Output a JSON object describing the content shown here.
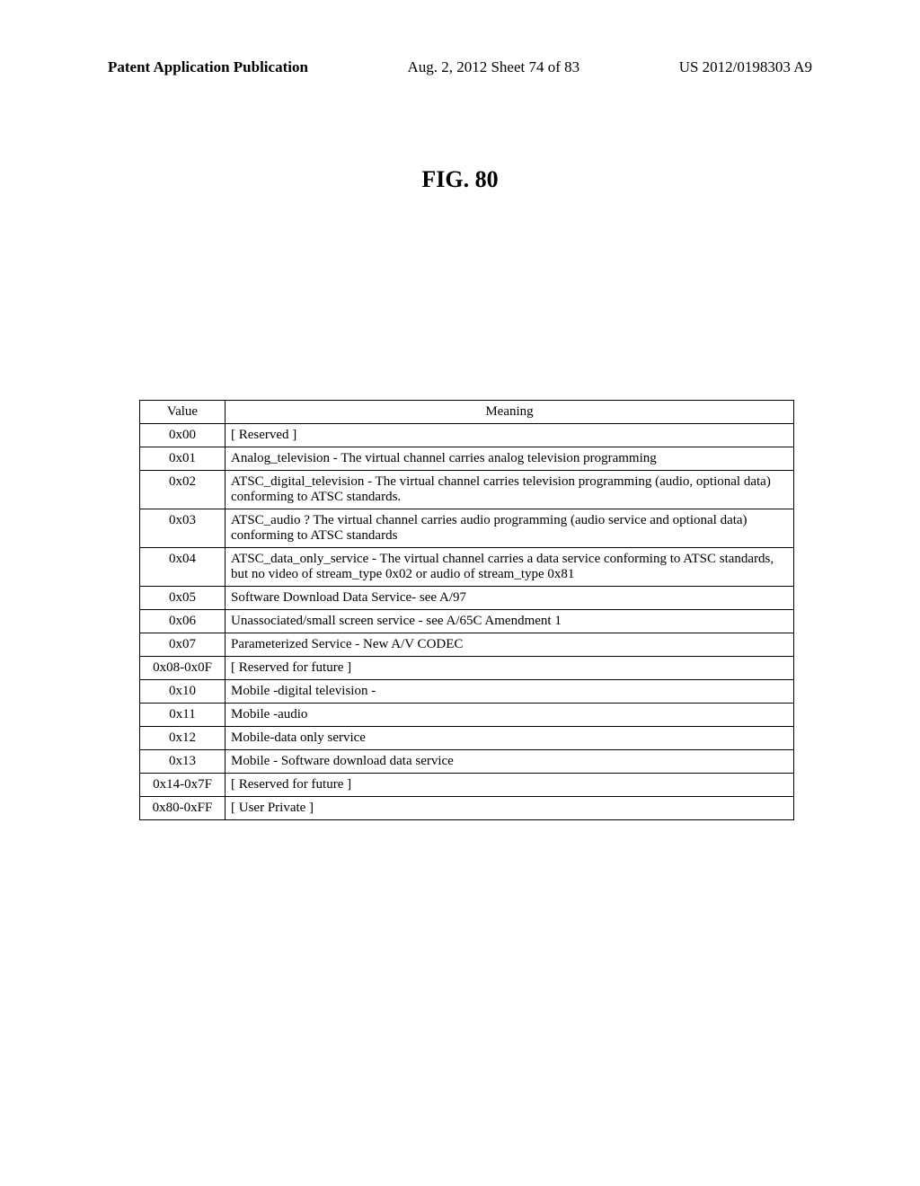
{
  "header": {
    "left": "Patent Application Publication",
    "center": "Aug. 2, 2012  Sheet 74 of 83",
    "right": "US 2012/0198303 A9"
  },
  "figure_title": "FIG. 80",
  "table": {
    "headers": {
      "value": "Value",
      "meaning": "Meaning"
    },
    "rows": [
      {
        "value": "0x00",
        "meaning": "[ Reserved ]"
      },
      {
        "value": "0x01",
        "meaning": "Analog_television - The virtual channel carries analog television programming"
      },
      {
        "value": "0x02",
        "meaning": "ATSC_digital_television - The virtual channel carries television programming (audio, optional data) conforming to ATSC standards."
      },
      {
        "value": "0x03",
        "meaning": "ATSC_audio ? The virtual channel carries audio programming (audio service and optional data) conforming to ATSC standards"
      },
      {
        "value": "0x04",
        "meaning": "ATSC_data_only_service - The virtual channel carries a data service conforming to ATSC standards, but no video of stream_type 0x02 or audio of stream_type 0x81"
      },
      {
        "value": "0x05",
        "meaning": "Software Download Data Service- see A/97"
      },
      {
        "value": "0x06",
        "meaning": "Unassociated/small screen service - see A/65C Amendment 1"
      },
      {
        "value": "0x07",
        "meaning": "Parameterized Service - New A/V CODEC"
      },
      {
        "value": "0x08-0x0F",
        "meaning": "[ Reserved for future ]"
      },
      {
        "value": "0x10",
        "meaning": "Mobile -digital television  -"
      },
      {
        "value": "0x11",
        "meaning": "Mobile -audio"
      },
      {
        "value": "0x12",
        "meaning": "Mobile-data only service"
      },
      {
        "value": "0x13",
        "meaning": "Mobile - Software download data service"
      },
      {
        "value": "0x14-0x7F",
        "meaning": "[ Reserved for future ]"
      },
      {
        "value": "0x80-0xFF",
        "meaning": "[ User Private ]"
      }
    ]
  }
}
